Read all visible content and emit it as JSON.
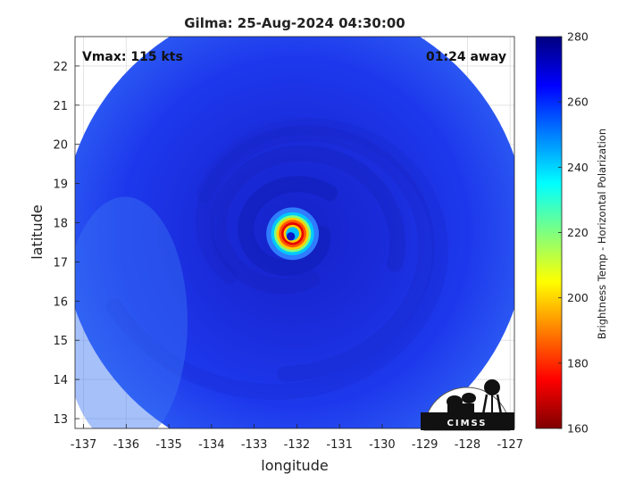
{
  "chart_data": {
    "type": "heatmap",
    "title": "Gilma: 25-Aug-2024 04:30:00",
    "annotations": {
      "vmax": "Vmax: 115 kts",
      "time_offset": "01:24 away"
    },
    "xlabel": "longitude",
    "ylabel": "latitude",
    "xlim": [
      -137.2,
      -126.9
    ],
    "ylim": [
      12.75,
      22.75
    ],
    "x_ticks": [
      -137,
      -136,
      -135,
      -134,
      -133,
      -132,
      -131,
      -130,
      -129,
      -128,
      -127
    ],
    "y_ticks": [
      13,
      14,
      15,
      16,
      17,
      18,
      19,
      20,
      21,
      22
    ],
    "grid": true,
    "colorbar": {
      "label": "Brightness Temp - Horizontal Polarization",
      "range": [
        160,
        280
      ],
      "ticks": [
        160,
        180,
        200,
        220,
        240,
        260,
        280
      ],
      "colormap": "jet"
    },
    "swath": {
      "center_lon": -132.05,
      "center_lat": 17.75,
      "radius_deg": 5.45
    },
    "storm": {
      "eye_lon": -132.1,
      "eye_lat": 17.72,
      "eye_temp": 250,
      "eyewall_temp": 180,
      "eyewall_radius_deg": 0.28
    },
    "logo": "CIMSS"
  },
  "colors": {
    "background_field": "#1a2ee6",
    "background": "#ffffff"
  }
}
